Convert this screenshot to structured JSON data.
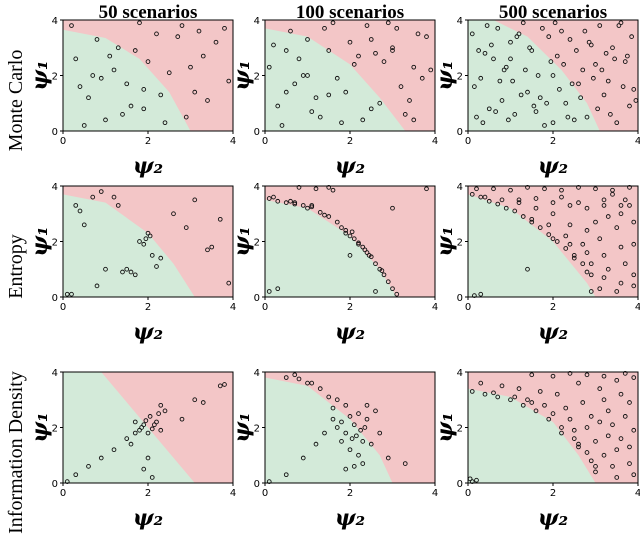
{
  "column_titles": [
    "50 scenarios",
    "100 scenarios",
    "500 scenarios"
  ],
  "row_titles": [
    "Monte Carlo",
    "Entropy",
    "Information Density"
  ],
  "chart_data": [
    {
      "type": "scatter",
      "xlabel": "ψ₂",
      "ylabel": "ψ₁",
      "xlim": [
        0,
        4
      ],
      "ylim": [
        0,
        4
      ],
      "xticks": [
        0,
        2,
        4
      ],
      "yticks": [
        0,
        2,
        4
      ],
      "colors": {
        "safe": "#d3ead9",
        "unsafe": "#f3c6c7",
        "marker_edge": "#111111"
      },
      "boundary": {
        "x": [
          0,
          1,
          1.8,
          2.5,
          3.0
        ],
        "y": [
          3.65,
          3.35,
          2.6,
          1.4,
          0
        ]
      },
      "x": [
        0.3,
        0.6,
        0.8,
        1.0,
        1.2,
        1.5,
        1.7,
        1.9,
        2.2,
        2.5,
        2.8,
        3.1,
        3.3,
        3.6,
        3.9,
        0.2,
        0.5,
        0.9,
        1.3,
        1.6,
        2.0,
        2.4,
        2.7,
        3.0,
        3.4,
        3.8,
        0.4,
        1.1,
        1.4,
        1.8,
        2.3,
        2.9,
        3.2,
        0.7,
        1.9
      ],
      "y": [
        2.6,
        1.2,
        3.3,
        0.4,
        2.2,
        1.7,
        2.9,
        0.8,
        3.5,
        2.1,
        3.8,
        1.4,
        2.7,
        3.2,
        1.8,
        3.8,
        0.2,
        1.9,
        3.0,
        0.9,
        2.5,
        0.3,
        3.4,
        2.3,
        1.1,
        3.7,
        1.6,
        2.7,
        0.6,
        3.9,
        1.3,
        0.5,
        3.6,
        2.0,
        1.5
      ]
    },
    {
      "type": "scatter",
      "xlabel": "ψ₂",
      "ylabel": "ψ₁",
      "xlim": [
        0,
        4
      ],
      "ylim": [
        0,
        4
      ],
      "xticks": [
        0,
        2,
        4
      ],
      "yticks": [
        0,
        2,
        4
      ],
      "colors": {
        "safe": "#d3ead9",
        "unsafe": "#f3c6c7",
        "marker_edge": "#111111"
      },
      "boundary": {
        "x": [
          0,
          1,
          2,
          2.7,
          3.3
        ],
        "y": [
          3.7,
          3.4,
          2.4,
          1.2,
          0
        ]
      },
      "x": [
        0.2,
        0.5,
        0.8,
        1.1,
        1.4,
        1.7,
        2.0,
        2.3,
        2.6,
        2.9,
        3.2,
        3.5,
        3.8,
        0.3,
        0.6,
        0.9,
        1.2,
        1.5,
        1.8,
        2.1,
        2.4,
        2.7,
        3.0,
        3.3,
        3.6,
        3.9,
        0.1,
        0.4,
        0.7,
        1.0,
        1.3,
        1.6,
        1.9,
        2.2,
        2.5,
        2.8,
        3.1,
        3.4,
        3.7,
        0.5,
        1.5,
        2.5,
        3.5,
        1.0,
        3.0
      ],
      "y": [
        3.1,
        1.4,
        2.6,
        0.7,
        3.7,
        1.9,
        3.2,
        0.4,
        2.8,
        3.9,
        1.6,
        2.3,
        3.4,
        0.9,
        3.6,
        2.0,
        1.2,
        2.9,
        0.3,
        2.4,
        3.8,
        1.0,
        3.0,
        0.6,
        3.5,
        2.2,
        2.3,
        0.2,
        1.7,
        3.3,
        0.5,
        3.9,
        1.4,
        2.7,
        0.8,
        2.5,
        3.7,
        1.1,
        1.9,
        2.9,
        1.3,
        3.3,
        0.4,
        2.0,
        2.9
      ]
    },
    {
      "type": "scatter",
      "xlabel": "ψ₂",
      "ylabel": "ψ₁",
      "xlim": [
        0,
        4
      ],
      "ylim": [
        0,
        4
      ],
      "xticks": [
        0,
        2,
        4
      ],
      "yticks": [
        0,
        2,
        4
      ],
      "colors": {
        "safe": "#d3ead9",
        "unsafe": "#f3c6c7",
        "marker_edge": "#111111"
      },
      "boundary": {
        "x": [
          0.6,
          1.4,
          2.2,
          2.8,
          3.1
        ],
        "y": [
          4,
          3.4,
          2.2,
          1,
          0
        ]
      },
      "x": [
        0.1,
        0.5,
        0.9,
        1.3,
        1.7,
        2.1,
        2.5,
        2.9,
        3.3,
        3.7,
        0.3,
        0.7,
        1.1,
        1.5,
        1.9,
        2.3,
        2.7,
        3.1,
        3.5,
        3.9,
        0.2,
        0.6,
        1.0,
        1.4,
        1.8,
        2.2,
        2.6,
        3.0,
        3.4,
        3.8,
        0.4,
        0.8,
        1.2,
        1.6,
        2.0,
        2.4,
        2.8,
        3.2,
        3.6,
        0.15,
        0.55,
        0.95,
        1.35,
        1.75,
        2.15,
        2.55,
        2.95,
        3.35,
        3.75,
        0.35,
        0.75,
        1.15,
        1.55,
        1.95,
        2.35,
        2.75,
        3.15,
        3.55,
        3.95,
        0.25,
        0.65,
        1.05,
        1.45,
        1.85,
        2.25,
        2.65,
        3.05,
        3.45,
        3.85,
        0.45,
        0.85,
        1.25,
        1.65,
        2.05,
        2.45,
        2.85,
        3.25,
        3.65,
        1.0,
        2.0
      ],
      "y": [
        3.5,
        0.8,
        2.3,
        3.9,
        1.2,
        2.7,
        0.4,
        3.1,
        1.8,
        2.5,
        1.9,
        3.7,
        0.6,
        2.9,
        3.4,
        1.0,
        2.2,
        3.8,
        0.3,
        1.5,
        0.5,
        2.6,
        3.2,
        1.4,
        0.2,
        3.6,
        1.7,
        2.4,
        3.0,
        0.9,
        2.8,
        1.1,
        3.5,
        0.7,
        2.0,
        3.3,
        0.5,
        1.3,
        3.9,
        1.6,
        3.1,
        0.4,
        2.2,
        3.7,
        1.5,
        2.9,
        1.9,
        0.6,
        2.7,
        0.3,
        1.8,
        3.4,
        0.9,
        2.5,
        0.5,
        3.6,
        2.2,
        3.8,
        1.1,
        2.9,
        0.7,
        1.8,
        3.0,
        1.0,
        2.4,
        1.2,
        0.8,
        2.6,
        3.4,
        3.8,
        2.2,
        1.3,
        2.0,
        3.9,
        1.7,
        3.2,
        2.8,
        1.6,
        2.6,
        0.3
      ]
    },
    {
      "type": "scatter",
      "xlabel": "ψ₂",
      "ylabel": "ψ₁",
      "xlim": [
        0,
        4
      ],
      "ylim": [
        0,
        4
      ],
      "xticks": [
        0,
        2,
        4
      ],
      "yticks": [
        0,
        2,
        4
      ],
      "colors": {
        "safe": "#d3ead9",
        "unsafe": "#f3c6c7",
        "marker_edge": "#111111"
      },
      "boundary": {
        "x": [
          0,
          1,
          2,
          2.6,
          3.1
        ],
        "y": [
          3.7,
          3.4,
          2.3,
          1.2,
          0
        ]
      },
      "x": [
        0.1,
        0.3,
        0.5,
        0.9,
        1.2,
        1.5,
        1.7,
        1.8,
        1.9,
        2.0,
        2.1,
        2.2,
        2.3,
        1.6,
        1.0,
        0.7,
        3.4,
        3.5,
        3.9,
        2.6,
        2.9,
        3.1,
        0.2,
        0.8,
        1.3,
        1.95,
        2.05,
        3.7,
        0.4,
        1.4
      ],
      "y": [
        0.1,
        3.3,
        2.6,
        3.8,
        3.6,
        1.0,
        0.8,
        2.0,
        1.9,
        2.3,
        1.5,
        1.1,
        1.4,
        0.9,
        1.0,
        3.6,
        1.7,
        1.8,
        0.5,
        3.0,
        2.5,
        3.5,
        0.1,
        0.4,
        3.3,
        2.1,
        2.2,
        2.8,
        3.1,
        0.9
      ]
    },
    {
      "type": "scatter",
      "xlabel": "ψ₂",
      "ylabel": "ψ₁",
      "xlim": [
        0,
        4
      ],
      "ylim": [
        0,
        4
      ],
      "xticks": [
        0,
        2,
        4
      ],
      "yticks": [
        0,
        2,
        4
      ],
      "colors": {
        "safe": "#d3ead9",
        "unsafe": "#f3c6c7",
        "marker_edge": "#111111"
      },
      "boundary": {
        "x": [
          0,
          1,
          2,
          2.7,
          3.1
        ],
        "y": [
          3.5,
          3.2,
          2.2,
          1,
          0
        ]
      },
      "x": [
        0.1,
        0.3,
        0.5,
        0.7,
        0.9,
        1.1,
        1.3,
        1.5,
        1.7,
        1.8,
        1.9,
        2.0,
        2.1,
        2.2,
        2.3,
        2.4,
        2.5,
        2.6,
        2.7,
        2.8,
        2.9,
        3.0,
        3.1,
        0.2,
        0.6,
        1.0,
        1.4,
        1.9,
        2.35,
        2.75,
        0.8,
        1.2,
        1.6,
        2.05,
        2.45,
        0.1,
        0.3,
        2.0,
        2.6,
        3.0,
        1.5,
        3.8,
        0.7,
        1.1,
        2.2
      ],
      "y": [
        3.55,
        3.45,
        3.4,
        3.35,
        3.3,
        3.25,
        3.05,
        2.9,
        2.7,
        2.5,
        2.4,
        2.2,
        2.1,
        1.95,
        1.8,
        1.6,
        1.45,
        1.2,
        1.0,
        0.8,
        0.55,
        0.3,
        0.1,
        3.6,
        3.45,
        3.2,
        2.95,
        2.3,
        1.7,
        0.95,
        3.95,
        3.9,
        3.85,
        2.35,
        1.5,
        0.2,
        0.3,
        1.5,
        0.2,
        3.2,
        3.95,
        3.9,
        3.4,
        3.3,
        1.9
      ]
    },
    {
      "type": "scatter",
      "xlabel": "ψ₂",
      "ylabel": "ψ₁",
      "xlim": [
        0,
        4
      ],
      "ylim": [
        0,
        4
      ],
      "xticks": [
        0,
        2,
        4
      ],
      "yticks": [
        0,
        2,
        4
      ],
      "colors": {
        "safe": "#d3ead9",
        "unsafe": "#f3c6c7",
        "marker_edge": "#111111"
      },
      "boundary": {
        "x": [
          0,
          1,
          2,
          2.8,
          3
        ],
        "y": [
          3.7,
          3.2,
          2,
          0.5,
          0
        ]
      },
      "x": [
        0.1,
        0.3,
        0.5,
        0.7,
        0.9,
        1.1,
        1.3,
        1.5,
        1.7,
        1.9,
        2.1,
        2.3,
        2.5,
        2.7,
        2.9,
        0.2,
        0.6,
        1.0,
        1.4,
        1.8,
        2.2,
        2.6,
        3.0,
        3.4,
        3.8,
        1.2,
        1.6,
        2.0,
        2.4,
        2.8,
        3.2,
        3.6,
        1.5,
        1.9,
        2.3,
        2.7,
        3.1,
        3.5,
        3.9,
        2.0,
        2.4,
        2.8,
        3.2,
        3.6,
        2.5,
        2.9,
        3.3,
        3.7,
        2.8,
        3.2,
        3.6,
        3.9,
        3.1,
        3.5,
        3.9,
        0.4,
        0.8,
        1.2,
        1.6,
        2.0,
        2.4,
        2.8,
        3.2,
        3.6,
        3.3,
        3.7,
        2.2,
        2.6,
        3.0,
        3.4,
        3.8,
        0.3,
        1.4,
        0.15,
        3.9,
        2.9
      ],
      "y": [
        3.7,
        3.6,
        3.45,
        3.35,
        3.2,
        3.1,
        2.9,
        2.7,
        2.5,
        2.25,
        2.0,
        1.75,
        1.5,
        1.2,
        0.8,
        3.9,
        3.9,
        3.85,
        3.95,
        3.9,
        3.85,
        3.95,
        3.9,
        3.85,
        3.95,
        3.5,
        3.2,
        3.0,
        2.6,
        2.4,
        3.3,
        3.0,
        2.8,
        2.6,
        2.2,
        1.9,
        2.1,
        2.5,
        2.7,
        2.1,
        1.9,
        1.6,
        1.5,
        1.8,
        1.4,
        1.2,
        1.0,
        1.2,
        0.9,
        0.7,
        0.5,
        0.8,
        0.3,
        0.2,
        0.4,
        3.6,
        3.5,
        3.4,
        3.55,
        3.4,
        3.3,
        3.2,
        3.5,
        3.3,
        2.9,
        3.5,
        3.6,
        3.4,
        2.7,
        3.7,
        3.3,
        0.1,
        1.0,
        0.05,
        1.9,
        0.2
      ]
    },
    {
      "type": "scatter",
      "xlabel": "ψ₂",
      "ylabel": "ψ₁",
      "xlim": [
        0,
        4
      ],
      "ylim": [
        0,
        4
      ],
      "xticks": [
        0,
        2,
        4
      ],
      "yticks": [
        0,
        2,
        4
      ],
      "colors": {
        "safe": "#d3ead9",
        "unsafe": "#f3c6c7",
        "marker_edge": "#111111"
      },
      "boundary": {
        "x": [
          0.9,
          3.1
        ],
        "y": [
          4,
          0
        ]
      },
      "x": [
        0.1,
        0.3,
        0.6,
        0.9,
        1.2,
        1.5,
        1.6,
        1.7,
        1.8,
        1.85,
        1.9,
        1.95,
        2.0,
        2.05,
        2.1,
        2.15,
        2.2,
        2.25,
        2.3,
        2.4,
        2.0,
        1.9,
        2.1,
        1.7,
        3.1,
        3.3,
        3.7,
        3.8,
        2.3,
        2.8
      ],
      "y": [
        0.05,
        0.3,
        0.6,
        0.9,
        1.2,
        1.6,
        1.4,
        1.8,
        1.9,
        2.0,
        2.1,
        2.25,
        1.8,
        2.4,
        1.95,
        2.1,
        2.2,
        2.5,
        1.9,
        2.6,
        0.9,
        0.5,
        0.2,
        2.2,
        3.0,
        2.9,
        3.5,
        3.55,
        2.8,
        2.3
      ]
    },
    {
      "type": "scatter",
      "xlabel": "ψ₂",
      "ylabel": "ψ₁",
      "xlim": [
        0,
        4
      ],
      "ylim": [
        0,
        4
      ],
      "xticks": [
        0,
        2,
        4
      ],
      "yticks": [
        0,
        2,
        4
      ],
      "colors": {
        "safe": "#d3ead9",
        "unsafe": "#f3c6c7",
        "marker_edge": "#111111"
      },
      "boundary": {
        "x": [
          0,
          1,
          2,
          2.7,
          3.0
        ],
        "y": [
          3.8,
          3.5,
          2.3,
          1,
          0
        ]
      },
      "x": [
        0.1,
        0.5,
        0.9,
        1.2,
        1.4,
        1.6,
        1.7,
        1.8,
        1.9,
        2.0,
        2.05,
        2.1,
        2.15,
        2.2,
        2.25,
        2.3,
        2.35,
        2.4,
        2.5,
        2.6,
        1.5,
        1.7,
        1.9,
        2.1,
        2.3,
        1.3,
        1.0,
        0.8,
        0.5,
        2.0,
        2.2,
        1.8,
        2.7,
        2.9,
        3.3,
        1.6,
        2.4,
        1.9,
        0.7,
        1.1
      ],
      "y": [
        0.05,
        0.3,
        0.9,
        1.4,
        1.8,
        2.3,
        2.0,
        2.2,
        1.8,
        2.4,
        1.6,
        2.1,
        1.7,
        2.5,
        1.9,
        1.5,
        2.0,
        2.3,
        1.4,
        2.6,
        3.1,
        3.0,
        2.8,
        0.6,
        0.7,
        3.4,
        3.6,
        3.75,
        3.8,
        1.2,
        1.0,
        1.5,
        1.8,
        0.9,
        0.7,
        2.7,
        2.8,
        0.5,
        3.9,
        3.6
      ]
    },
    {
      "type": "scatter",
      "xlabel": "ψ₂",
      "ylabel": "ψ₁",
      "xlim": [
        0,
        4
      ],
      "ylim": [
        0,
        4
      ],
      "xticks": [
        0,
        2,
        4
      ],
      "yticks": [
        0,
        2,
        4
      ],
      "colors": {
        "safe": "#d3ead9",
        "unsafe": "#f3c6c7",
        "marker_edge": "#111111"
      },
      "boundary": {
        "x": [
          0,
          1,
          2,
          2.6,
          3
        ],
        "y": [
          3.4,
          3.1,
          2.2,
          1,
          0
        ]
      },
      "x": [
        0.1,
        0.4,
        0.7,
        1.0,
        1.3,
        1.6,
        1.9,
        2.2,
        2.5,
        2.8,
        3.0,
        0.3,
        0.8,
        1.2,
        1.7,
        2.1,
        2.6,
        3.1,
        3.5,
        3.9,
        1.4,
        1.8,
        2.3,
        2.7,
        3.2,
        3.6,
        2.0,
        2.4,
        2.9,
        3.3,
        3.8,
        2.5,
        2.8,
        3.1,
        3.4,
        3.7,
        2.6,
        3.0,
        3.3,
        3.6,
        3.9,
        2.9,
        3.2,
        3.5,
        3.8,
        3.0,
        3.4,
        3.8,
        1.5,
        2.0,
        2.4,
        2.8,
        3.2,
        3.7,
        0.1,
        0.2,
        0.05,
        1.1,
        1.5,
        2.2,
        2.6,
        0.6,
        3.9,
        3.5
      ],
      "y": [
        3.3,
        3.2,
        3.1,
        3.0,
        2.8,
        2.6,
        2.3,
        2.0,
        1.6,
        1.1,
        0.6,
        3.6,
        3.5,
        3.4,
        3.3,
        3.2,
        3.6,
        3.4,
        3.7,
        3.8,
        3.0,
        2.8,
        2.7,
        2.9,
        3.0,
        3.2,
        2.5,
        2.3,
        2.4,
        2.6,
        2.9,
        1.9,
        2.0,
        2.2,
        2.1,
        2.4,
        1.3,
        1.5,
        1.7,
        1.6,
        1.9,
        0.8,
        1.0,
        1.2,
        1.3,
        0.4,
        0.6,
        0.7,
        3.9,
        3.85,
        3.95,
        3.9,
        3.85,
        3.95,
        0.05,
        0.1,
        0.15,
        3.1,
        2.9,
        1.8,
        1.4,
        3.25,
        0.3,
        0.2
      ]
    }
  ]
}
